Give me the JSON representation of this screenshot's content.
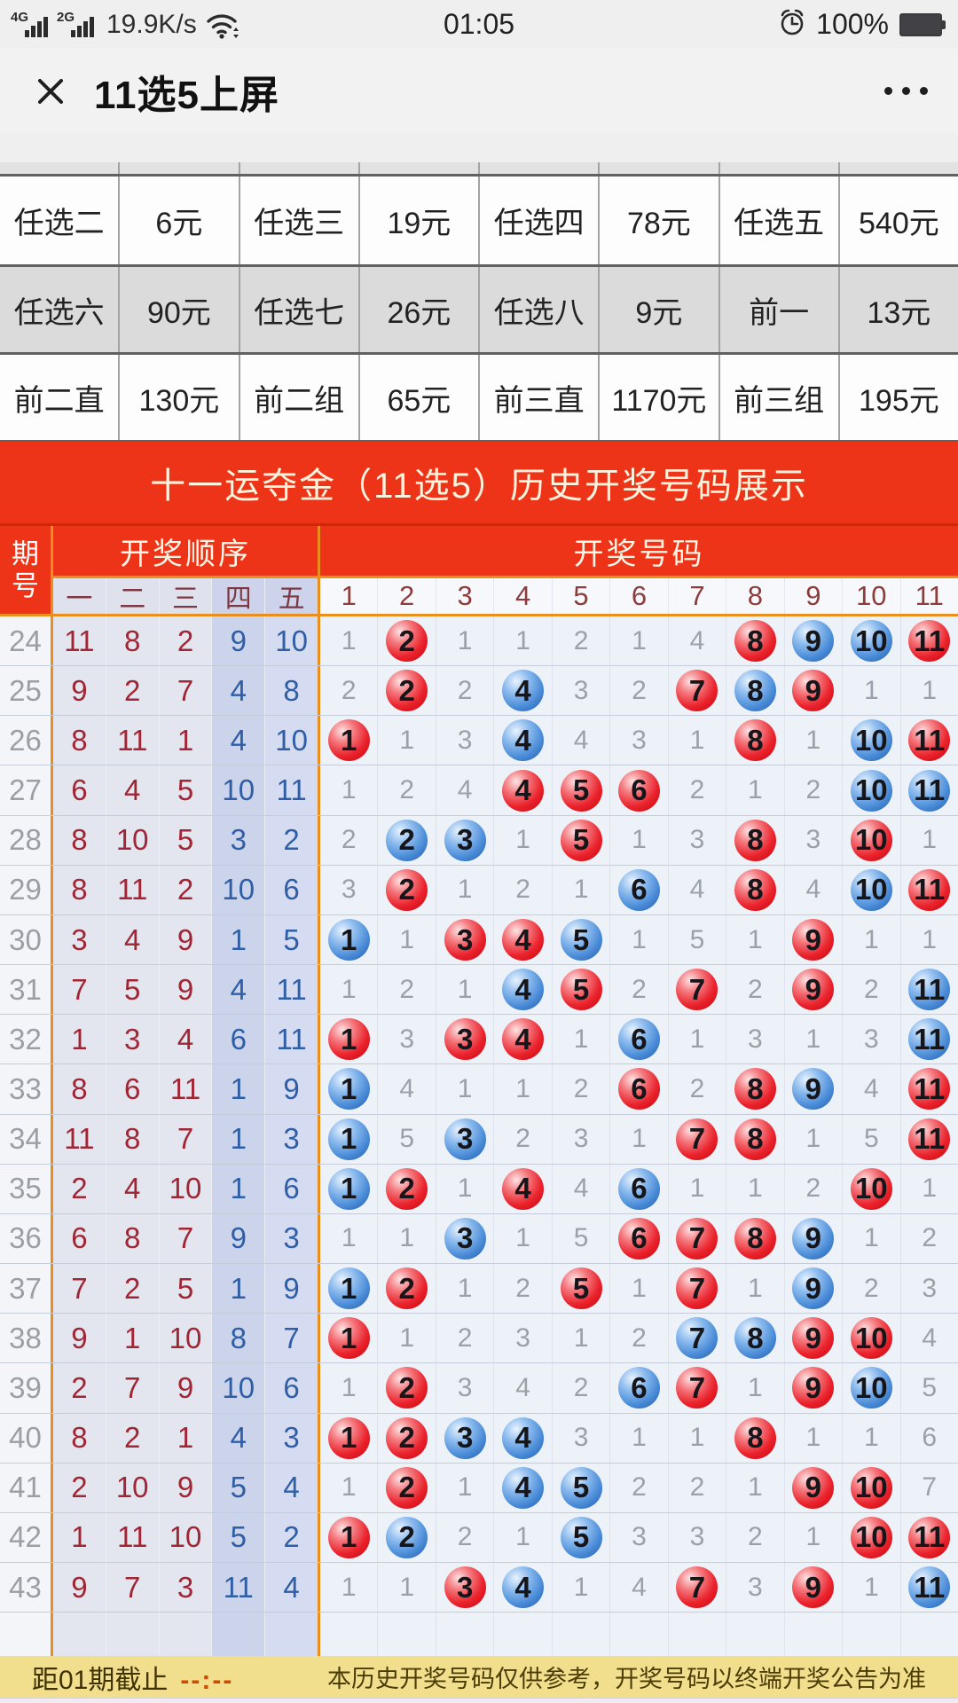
{
  "status_bar": {
    "sig1": "4G",
    "sig2": "2G",
    "net_speed": "19.9K/s",
    "time": "01:05",
    "battery_pct": "100%"
  },
  "nav": {
    "title": "11选5上屏",
    "close": "×",
    "more": "•••"
  },
  "prizes": {
    "rows": [
      [
        "任选二",
        "6元",
        "任选三",
        "19元",
        "任选四",
        "78元",
        "任选五",
        "540元"
      ],
      [
        "任选六",
        "90元",
        "任选七",
        "26元",
        "任选八",
        "9元",
        "前一",
        "13元"
      ],
      [
        "前二直",
        "130元",
        "前二组",
        "65元",
        "前三直",
        "1170元",
        "前三组",
        "195元"
      ]
    ]
  },
  "banner": {
    "title": "十一运夺金（11选5）历史开奖号码展示"
  },
  "history": {
    "corner": "期号",
    "group_order": "开奖顺序",
    "group_numbers": "开奖号码",
    "order_cols": [
      "一",
      "二",
      "三",
      "四",
      "五"
    ],
    "number_cols": [
      "1",
      "2",
      "3",
      "4",
      "5",
      "6",
      "7",
      "8",
      "9",
      "10",
      "11"
    ],
    "rows": [
      {
        "period": "24",
        "order": [
          "11",
          "8",
          "2",
          "9",
          "10"
        ],
        "cells": [
          [
            "1",
            "p"
          ],
          [
            "2",
            "r"
          ],
          [
            "1",
            "p"
          ],
          [
            "1",
            "p"
          ],
          [
            "2",
            "p"
          ],
          [
            "1",
            "p"
          ],
          [
            "4",
            "p"
          ],
          [
            "8",
            "r"
          ],
          [
            "9",
            "b"
          ],
          [
            "10",
            "b"
          ],
          [
            "11",
            "r"
          ]
        ]
      },
      {
        "period": "25",
        "order": [
          "9",
          "2",
          "7",
          "4",
          "8"
        ],
        "cells": [
          [
            "2",
            "p"
          ],
          [
            "2",
            "r"
          ],
          [
            "2",
            "p"
          ],
          [
            "4",
            "b"
          ],
          [
            "3",
            "p"
          ],
          [
            "2",
            "p"
          ],
          [
            "7",
            "r"
          ],
          [
            "8",
            "b"
          ],
          [
            "9",
            "r"
          ],
          [
            "1",
            "p"
          ],
          [
            "1",
            "p"
          ]
        ]
      },
      {
        "period": "26",
        "order": [
          "8",
          "11",
          "1",
          "4",
          "10"
        ],
        "cells": [
          [
            "1",
            "r"
          ],
          [
            "1",
            "p"
          ],
          [
            "3",
            "p"
          ],
          [
            "4",
            "b"
          ],
          [
            "4",
            "p"
          ],
          [
            "3",
            "p"
          ],
          [
            "1",
            "p"
          ],
          [
            "8",
            "r"
          ],
          [
            "1",
            "p"
          ],
          [
            "10",
            "b"
          ],
          [
            "11",
            "r"
          ]
        ]
      },
      {
        "period": "27",
        "order": [
          "6",
          "4",
          "5",
          "10",
          "11"
        ],
        "cells": [
          [
            "1",
            "p"
          ],
          [
            "2",
            "p"
          ],
          [
            "4",
            "p"
          ],
          [
            "4",
            "r"
          ],
          [
            "5",
            "r"
          ],
          [
            "6",
            "r"
          ],
          [
            "2",
            "p"
          ],
          [
            "1",
            "p"
          ],
          [
            "2",
            "p"
          ],
          [
            "10",
            "b"
          ],
          [
            "11",
            "b"
          ]
        ]
      },
      {
        "period": "28",
        "order": [
          "8",
          "10",
          "5",
          "3",
          "2"
        ],
        "cells": [
          [
            "2",
            "p"
          ],
          [
            "2",
            "b"
          ],
          [
            "3",
            "b"
          ],
          [
            "1",
            "p"
          ],
          [
            "5",
            "r"
          ],
          [
            "1",
            "p"
          ],
          [
            "3",
            "p"
          ],
          [
            "8",
            "r"
          ],
          [
            "3",
            "p"
          ],
          [
            "10",
            "r"
          ],
          [
            "1",
            "p"
          ]
        ]
      },
      {
        "period": "29",
        "order": [
          "8",
          "11",
          "2",
          "10",
          "6"
        ],
        "cells": [
          [
            "3",
            "p"
          ],
          [
            "2",
            "r"
          ],
          [
            "1",
            "p"
          ],
          [
            "2",
            "p"
          ],
          [
            "1",
            "p"
          ],
          [
            "6",
            "b"
          ],
          [
            "4",
            "p"
          ],
          [
            "8",
            "r"
          ],
          [
            "4",
            "p"
          ],
          [
            "10",
            "b"
          ],
          [
            "11",
            "r"
          ]
        ]
      },
      {
        "period": "30",
        "order": [
          "3",
          "4",
          "9",
          "1",
          "5"
        ],
        "cells": [
          [
            "1",
            "b"
          ],
          [
            "1",
            "p"
          ],
          [
            "3",
            "r"
          ],
          [
            "4",
            "r"
          ],
          [
            "5",
            "b"
          ],
          [
            "1",
            "p"
          ],
          [
            "5",
            "p"
          ],
          [
            "1",
            "p"
          ],
          [
            "9",
            "r"
          ],
          [
            "1",
            "p"
          ],
          [
            "1",
            "p"
          ]
        ]
      },
      {
        "period": "31",
        "order": [
          "7",
          "5",
          "9",
          "4",
          "11"
        ],
        "cells": [
          [
            "1",
            "p"
          ],
          [
            "2",
            "p"
          ],
          [
            "1",
            "p"
          ],
          [
            "4",
            "b"
          ],
          [
            "5",
            "r"
          ],
          [
            "2",
            "p"
          ],
          [
            "7",
            "r"
          ],
          [
            "2",
            "p"
          ],
          [
            "9",
            "r"
          ],
          [
            "2",
            "p"
          ],
          [
            "11",
            "b"
          ]
        ]
      },
      {
        "period": "32",
        "order": [
          "1",
          "3",
          "4",
          "6",
          "11"
        ],
        "cells": [
          [
            "1",
            "r"
          ],
          [
            "3",
            "p"
          ],
          [
            "3",
            "r"
          ],
          [
            "4",
            "r"
          ],
          [
            "1",
            "p"
          ],
          [
            "6",
            "b"
          ],
          [
            "1",
            "p"
          ],
          [
            "3",
            "p"
          ],
          [
            "1",
            "p"
          ],
          [
            "3",
            "p"
          ],
          [
            "11",
            "b"
          ]
        ]
      },
      {
        "period": "33",
        "order": [
          "8",
          "6",
          "11",
          "1",
          "9"
        ],
        "cells": [
          [
            "1",
            "b"
          ],
          [
            "4",
            "p"
          ],
          [
            "1",
            "p"
          ],
          [
            "1",
            "p"
          ],
          [
            "2",
            "p"
          ],
          [
            "6",
            "r"
          ],
          [
            "2",
            "p"
          ],
          [
            "8",
            "r"
          ],
          [
            "9",
            "b"
          ],
          [
            "4",
            "p"
          ],
          [
            "11",
            "r"
          ]
        ]
      },
      {
        "period": "34",
        "order": [
          "11",
          "8",
          "7",
          "1",
          "3"
        ],
        "cells": [
          [
            "1",
            "b"
          ],
          [
            "5",
            "p"
          ],
          [
            "3",
            "b"
          ],
          [
            "2",
            "p"
          ],
          [
            "3",
            "p"
          ],
          [
            "1",
            "p"
          ],
          [
            "7",
            "r"
          ],
          [
            "8",
            "r"
          ],
          [
            "1",
            "p"
          ],
          [
            "5",
            "p"
          ],
          [
            "11",
            "r"
          ]
        ]
      },
      {
        "period": "35",
        "order": [
          "2",
          "4",
          "10",
          "1",
          "6"
        ],
        "cells": [
          [
            "1",
            "b"
          ],
          [
            "2",
            "r"
          ],
          [
            "1",
            "p"
          ],
          [
            "4",
            "r"
          ],
          [
            "4",
            "p"
          ],
          [
            "6",
            "b"
          ],
          [
            "1",
            "p"
          ],
          [
            "1",
            "p"
          ],
          [
            "2",
            "p"
          ],
          [
            "10",
            "r"
          ],
          [
            "1",
            "p"
          ]
        ]
      },
      {
        "period": "36",
        "order": [
          "6",
          "8",
          "7",
          "9",
          "3"
        ],
        "cells": [
          [
            "1",
            "p"
          ],
          [
            "1",
            "p"
          ],
          [
            "3",
            "b"
          ],
          [
            "1",
            "p"
          ],
          [
            "5",
            "p"
          ],
          [
            "6",
            "r"
          ],
          [
            "7",
            "r"
          ],
          [
            "8",
            "r"
          ],
          [
            "9",
            "b"
          ],
          [
            "1",
            "p"
          ],
          [
            "2",
            "p"
          ]
        ]
      },
      {
        "period": "37",
        "order": [
          "7",
          "2",
          "5",
          "1",
          "9"
        ],
        "cells": [
          [
            "1",
            "b"
          ],
          [
            "2",
            "r"
          ],
          [
            "1",
            "p"
          ],
          [
            "2",
            "p"
          ],
          [
            "5",
            "r"
          ],
          [
            "1",
            "p"
          ],
          [
            "7",
            "r"
          ],
          [
            "1",
            "p"
          ],
          [
            "9",
            "b"
          ],
          [
            "2",
            "p"
          ],
          [
            "3",
            "p"
          ]
        ]
      },
      {
        "period": "38",
        "order": [
          "9",
          "1",
          "10",
          "8",
          "7"
        ],
        "cells": [
          [
            "1",
            "r"
          ],
          [
            "1",
            "p"
          ],
          [
            "2",
            "p"
          ],
          [
            "3",
            "p"
          ],
          [
            "1",
            "p"
          ],
          [
            "2",
            "p"
          ],
          [
            "7",
            "b"
          ],
          [
            "8",
            "b"
          ],
          [
            "9",
            "r"
          ],
          [
            "10",
            "r"
          ],
          [
            "4",
            "p"
          ]
        ]
      },
      {
        "period": "39",
        "order": [
          "2",
          "7",
          "9",
          "10",
          "6"
        ],
        "cells": [
          [
            "1",
            "p"
          ],
          [
            "2",
            "r"
          ],
          [
            "3",
            "p"
          ],
          [
            "4",
            "p"
          ],
          [
            "2",
            "p"
          ],
          [
            "6",
            "b"
          ],
          [
            "7",
            "r"
          ],
          [
            "1",
            "p"
          ],
          [
            "9",
            "r"
          ],
          [
            "10",
            "b"
          ],
          [
            "5",
            "p"
          ]
        ]
      },
      {
        "period": "40",
        "order": [
          "8",
          "2",
          "1",
          "4",
          "3"
        ],
        "cells": [
          [
            "1",
            "r"
          ],
          [
            "2",
            "r"
          ],
          [
            "3",
            "b"
          ],
          [
            "4",
            "b"
          ],
          [
            "3",
            "p"
          ],
          [
            "1",
            "p"
          ],
          [
            "1",
            "p"
          ],
          [
            "8",
            "r"
          ],
          [
            "1",
            "p"
          ],
          [
            "1",
            "p"
          ],
          [
            "6",
            "p"
          ]
        ]
      },
      {
        "period": "41",
        "order": [
          "2",
          "10",
          "9",
          "5",
          "4"
        ],
        "cells": [
          [
            "1",
            "p"
          ],
          [
            "2",
            "r"
          ],
          [
            "1",
            "p"
          ],
          [
            "4",
            "b"
          ],
          [
            "5",
            "b"
          ],
          [
            "2",
            "p"
          ],
          [
            "2",
            "p"
          ],
          [
            "1",
            "p"
          ],
          [
            "9",
            "r"
          ],
          [
            "10",
            "r"
          ],
          [
            "7",
            "p"
          ]
        ]
      },
      {
        "period": "42",
        "order": [
          "1",
          "11",
          "10",
          "5",
          "2"
        ],
        "cells": [
          [
            "1",
            "r"
          ],
          [
            "2",
            "b"
          ],
          [
            "2",
            "p"
          ],
          [
            "1",
            "p"
          ],
          [
            "5",
            "b"
          ],
          [
            "3",
            "p"
          ],
          [
            "3",
            "p"
          ],
          [
            "2",
            "p"
          ],
          [
            "1",
            "p"
          ],
          [
            "10",
            "r"
          ],
          [
            "11",
            "r"
          ]
        ]
      },
      {
        "period": "43",
        "order": [
          "9",
          "7",
          "3",
          "11",
          "4"
        ],
        "cells": [
          [
            "1",
            "p"
          ],
          [
            "1",
            "p"
          ],
          [
            "3",
            "r"
          ],
          [
            "4",
            "b"
          ],
          [
            "1",
            "p"
          ],
          [
            "4",
            "p"
          ],
          [
            "7",
            "r"
          ],
          [
            "3",
            "p"
          ],
          [
            "9",
            "r"
          ],
          [
            "1",
            "p"
          ],
          [
            "11",
            "b"
          ]
        ]
      }
    ]
  },
  "footer": {
    "deadline_label": "距01期截止",
    "countdown": "--:--",
    "disclaimer": "本历史开奖号码仅供参考，开奖号码以终端开奖公告为准"
  },
  "colors": {
    "accent_red": "#ee3418",
    "accent_orange": "#e98f1d",
    "ball_red": "#ea222c",
    "ball_blue": "#4a8cd8",
    "footer_yellow": "#f2df8e"
  }
}
